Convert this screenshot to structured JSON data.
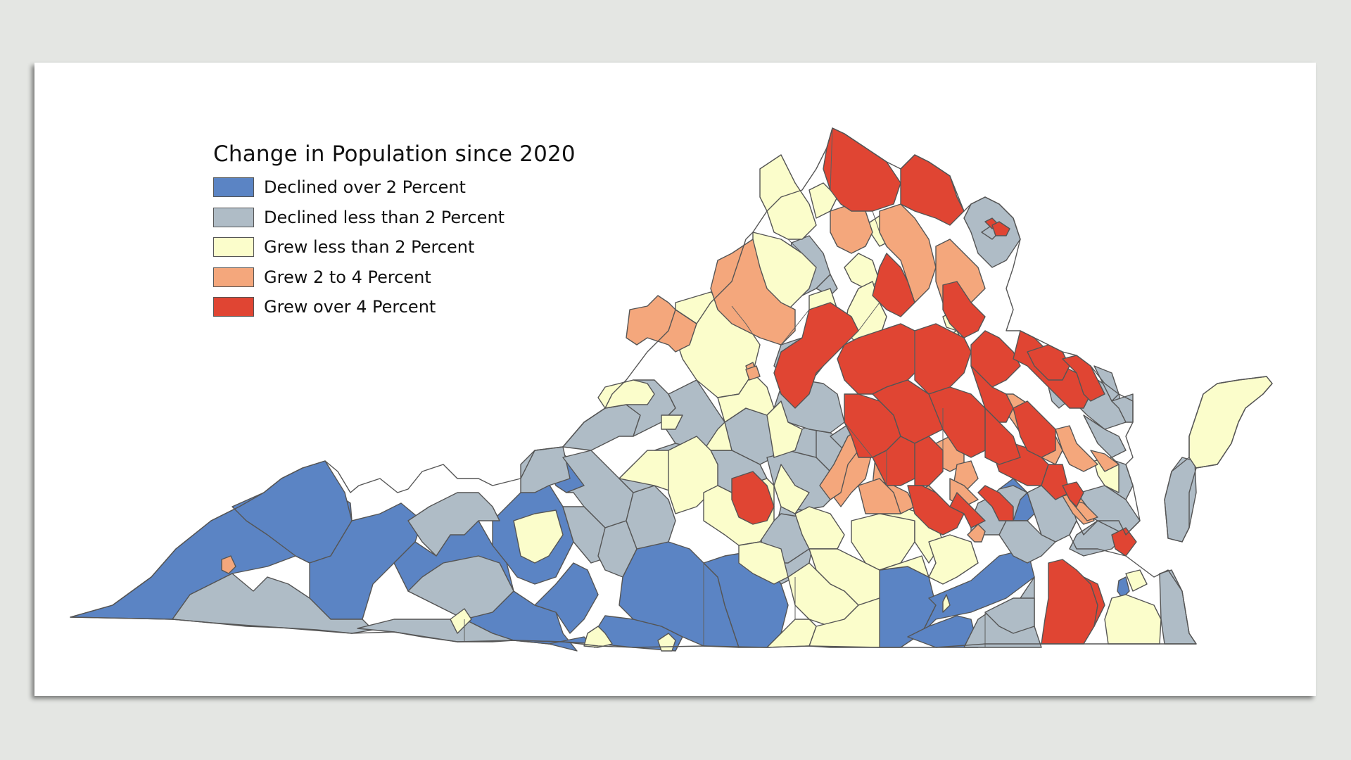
{
  "legend": {
    "title": "Change in Population since 2020",
    "items": [
      {
        "label": "Declined over 2 Percent",
        "color": "#5b84c4"
      },
      {
        "label": "Declined less than 2 Percent",
        "color": "#afbcc6"
      },
      {
        "label": "Grew less than 2 Percent",
        "color": "#fbfdcb"
      },
      {
        "label": "Grew 2 to 4 Percent",
        "color": "#f4a77c"
      },
      {
        "label": "Grew over 4 Percent",
        "color": "#e04533"
      }
    ]
  }
}
